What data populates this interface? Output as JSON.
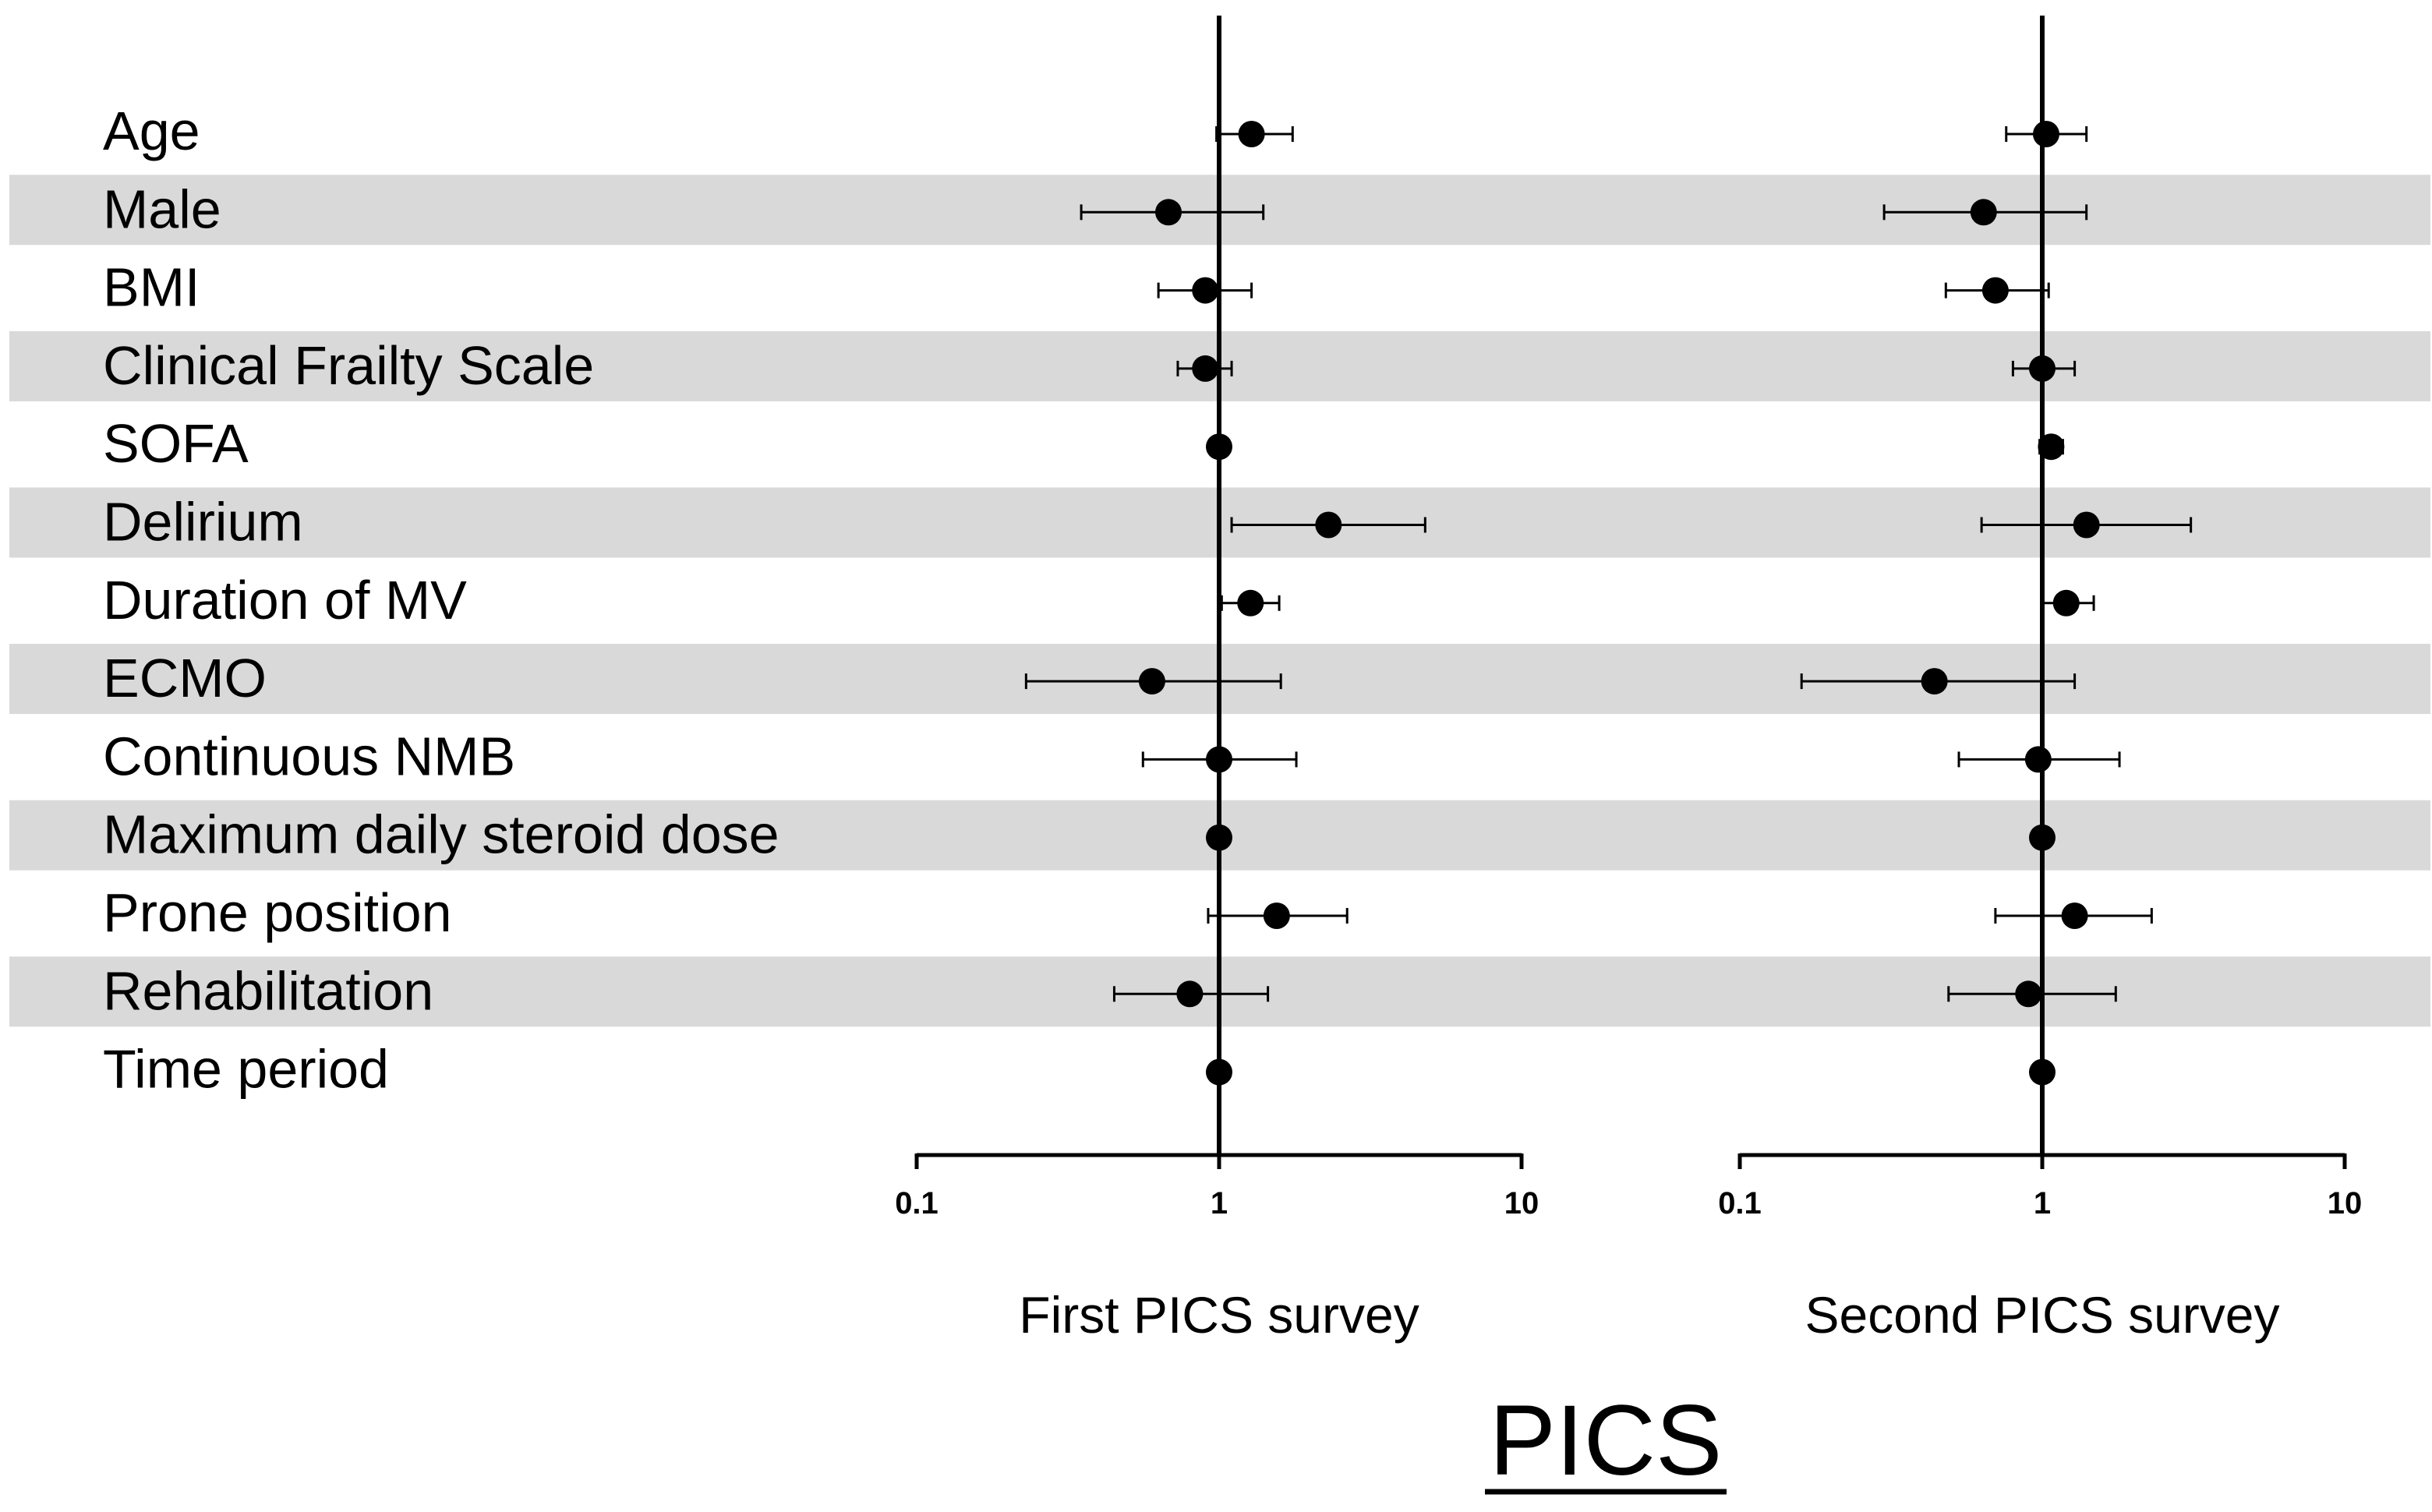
{
  "chart_data": {
    "type": "forest",
    "title": "PICS",
    "x_scale": "log10",
    "xlim": [
      0.1,
      10
    ],
    "reference_line": 1,
    "x_ticks": [
      0.1,
      1,
      10
    ],
    "x_tick_labels": [
      "0.1",
      "1",
      "10"
    ],
    "row_striping": "alternate rows shaded light gray",
    "rows": [
      "Age",
      "Male",
      "BMI",
      "Clinical Frailty Scale",
      "SOFA",
      "Delirium",
      "Duration of MV",
      "ECMO",
      "Continuous NMB",
      "Maximum daily steroid dose",
      "Prone position",
      "Rehabilitation",
      "Time period"
    ],
    "panels": [
      {
        "label": "First PICS survey",
        "estimates": [
          {
            "est": 1.28,
            "lo": 0.98,
            "hi": 1.75
          },
          {
            "est": 0.68,
            "lo": 0.35,
            "hi": 1.4
          },
          {
            "est": 0.9,
            "lo": 0.63,
            "hi": 1.28
          },
          {
            "est": 0.9,
            "lo": 0.73,
            "hi": 1.1
          },
          {
            "est": 1.0,
            "lo": 0.95,
            "hi": 1.05
          },
          {
            "est": 2.3,
            "lo": 1.1,
            "hi": 4.8
          },
          {
            "est": 1.27,
            "lo": 1.02,
            "hi": 1.58
          },
          {
            "est": 0.6,
            "lo": 0.23,
            "hi": 1.6
          },
          {
            "est": 1.0,
            "lo": 0.56,
            "hi": 1.8
          },
          {
            "est": 1.0,
            "lo": 1.0,
            "hi": 1.0
          },
          {
            "est": 1.55,
            "lo": 0.92,
            "hi": 2.65
          },
          {
            "est": 0.8,
            "lo": 0.45,
            "hi": 1.45
          },
          {
            "est": 1.0,
            "lo": 1.0,
            "hi": 1.0
          }
        ]
      },
      {
        "label": "Second PICS survey",
        "estimates": [
          {
            "est": 1.03,
            "lo": 0.76,
            "hi": 1.4
          },
          {
            "est": 0.64,
            "lo": 0.3,
            "hi": 1.4
          },
          {
            "est": 0.7,
            "lo": 0.48,
            "hi": 1.05
          },
          {
            "est": 1.0,
            "lo": 0.8,
            "hi": 1.28
          },
          {
            "est": 1.07,
            "lo": 0.98,
            "hi": 1.17
          },
          {
            "est": 1.4,
            "lo": 0.63,
            "hi": 3.1
          },
          {
            "est": 1.2,
            "lo": 1.0,
            "hi": 1.48
          },
          {
            "est": 0.44,
            "lo": 0.16,
            "hi": 1.28
          },
          {
            "est": 0.97,
            "lo": 0.53,
            "hi": 1.8
          },
          {
            "est": 1.0,
            "lo": 1.0,
            "hi": 1.0
          },
          {
            "est": 1.28,
            "lo": 0.7,
            "hi": 2.3
          },
          {
            "est": 0.9,
            "lo": 0.49,
            "hi": 1.75
          },
          {
            "est": 1.0,
            "lo": 1.0,
            "hi": 1.0
          }
        ]
      }
    ]
  }
}
